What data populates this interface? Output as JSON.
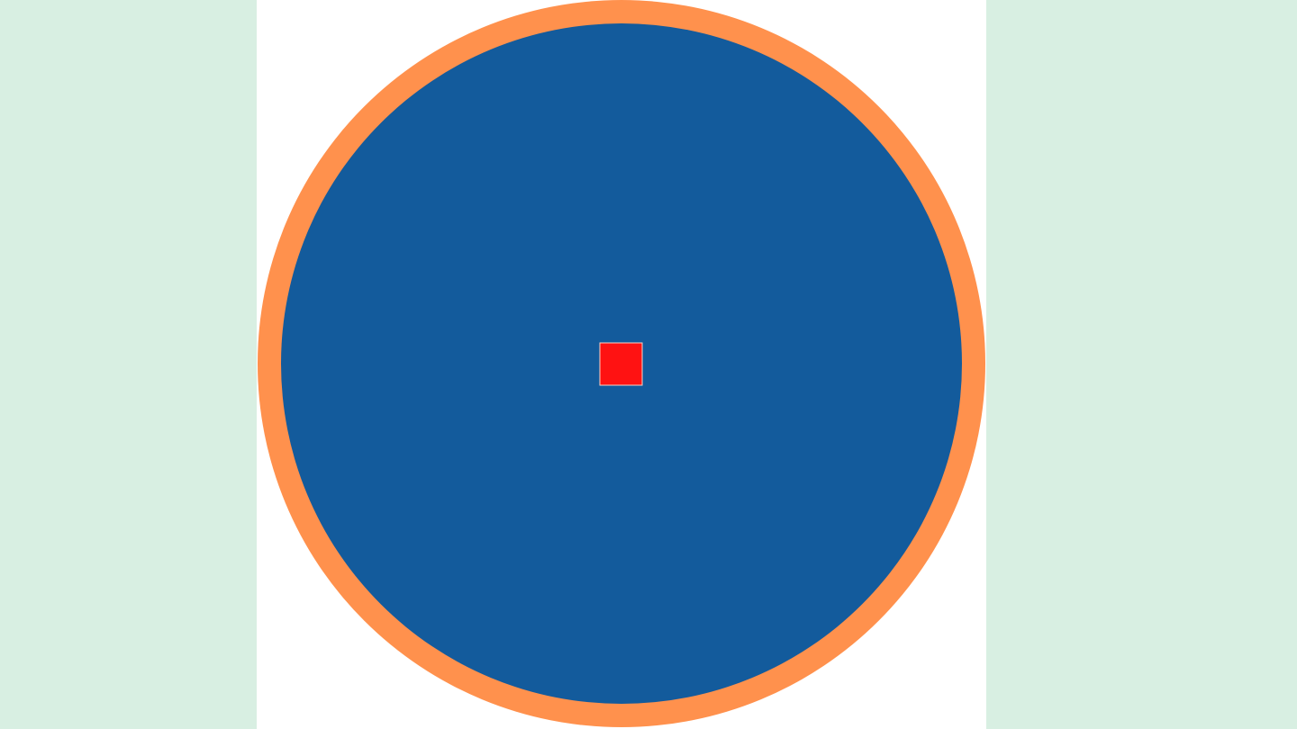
{
  "game": {
    "colors": {
      "page_background": "#d8efe2",
      "stage_background": "#ffffff",
      "arena_ring": "#ff914d",
      "arena_fill": "#135b9c",
      "player_fill": "#ff1212",
      "player_outline": "#ffd0c2"
    }
  }
}
